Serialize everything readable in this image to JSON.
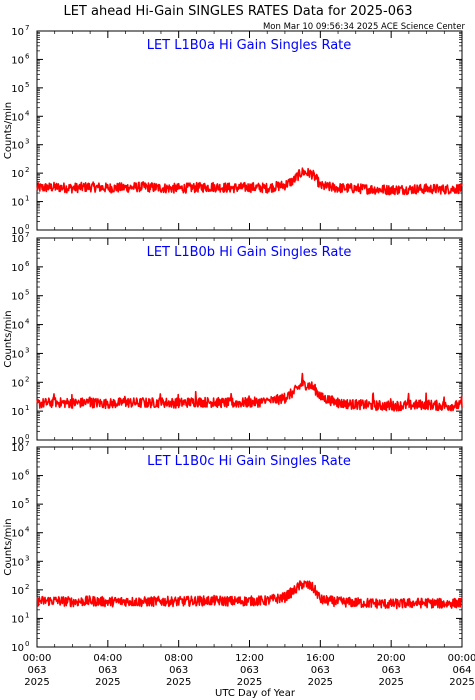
{
  "page": {
    "title": "LET ahead Hi-Gain SINGLES RATES Data for 2025-063",
    "timestamp": "Mon Mar 10 09:56:34 2025 ACE Science Center",
    "xlabel": "UTC Day of Year",
    "ylabel": "Counts/min"
  },
  "colors": {
    "series": "#ff0000",
    "panel_title": "#0000ff",
    "axes": "#000000"
  },
  "chart_data": [
    {
      "type": "line",
      "title": "LET L1B0a Hi Gain Singles Rate",
      "ylabel": "Counts/min",
      "yscale": "log",
      "ylim": [
        1,
        10000000
      ],
      "xlim": [
        0,
        24
      ],
      "xunit": "hours UTC",
      "series": [
        {
          "x": [
            0,
            1,
            2,
            3,
            4,
            5,
            6,
            7,
            8,
            9,
            10,
            11,
            12,
            13,
            14,
            14.5,
            15,
            15.5,
            16,
            17,
            18,
            19,
            20,
            21,
            22,
            23,
            24
          ],
          "values": [
            30,
            32,
            30,
            33,
            30,
            31,
            33,
            30,
            29,
            31,
            33,
            30,
            32,
            30,
            38,
            55,
            110,
            95,
            35,
            30,
            29,
            27,
            26,
            27,
            28,
            27,
            29
          ]
        }
      ]
    },
    {
      "type": "line",
      "title": "LET L1B0b Hi Gain Singles Rate",
      "ylabel": "Counts/min",
      "yscale": "log",
      "ylim": [
        1,
        10000000
      ],
      "xlim": [
        0,
        24
      ],
      "xunit": "hours UTC",
      "series": [
        {
          "x": [
            0,
            1,
            2,
            3,
            4,
            5,
            6,
            7,
            8,
            9,
            10,
            11,
            12,
            13,
            14,
            14.5,
            15,
            15.5,
            16,
            17,
            18,
            19,
            20,
            21,
            22,
            23,
            24
          ],
          "values": [
            18,
            20,
            19,
            20,
            18,
            20,
            19,
            20,
            19,
            21,
            20,
            19,
            20,
            21,
            28,
            45,
            85,
            75,
            30,
            19,
            17,
            16,
            15,
            16,
            17,
            15,
            16
          ]
        }
      ]
    },
    {
      "type": "line",
      "title": "LET L1B0c Hi Gain Singles Rate",
      "ylabel": "Counts/min",
      "yscale": "log",
      "ylim": [
        1,
        10000000
      ],
      "xlim": [
        0,
        24
      ],
      "xunit": "hours UTC",
      "series": [
        {
          "x": [
            0,
            1,
            2,
            3,
            4,
            5,
            6,
            7,
            8,
            9,
            10,
            11,
            12,
            13,
            14,
            14.5,
            15,
            15.5,
            16,
            17,
            18,
            19,
            20,
            21,
            22,
            23,
            24
          ],
          "values": [
            40,
            42,
            38,
            41,
            38,
            40,
            38,
            40,
            39,
            41,
            42,
            40,
            41,
            42,
            55,
            90,
            160,
            130,
            45,
            38,
            36,
            34,
            32,
            34,
            35,
            33,
            35
          ]
        }
      ]
    }
  ],
  "xticks": [
    {
      "time": "00:00",
      "doy": "063",
      "year": "2025"
    },
    {
      "time": "04:00",
      "doy": "063",
      "year": "2025"
    },
    {
      "time": "08:00",
      "doy": "063",
      "year": "2025"
    },
    {
      "time": "12:00",
      "doy": "063",
      "year": "2025"
    },
    {
      "time": "16:00",
      "doy": "063",
      "year": "2025"
    },
    {
      "time": "20:00",
      "doy": "063",
      "year": "2025"
    },
    {
      "time": "00:00",
      "doy": "064",
      "year": "2025"
    }
  ],
  "yticks": [
    "10",
    "10",
    "10",
    "10",
    "10",
    "10",
    "10",
    "10"
  ],
  "ytick_exps": [
    "0",
    "1",
    "2",
    "3",
    "4",
    "5",
    "6",
    "7"
  ]
}
